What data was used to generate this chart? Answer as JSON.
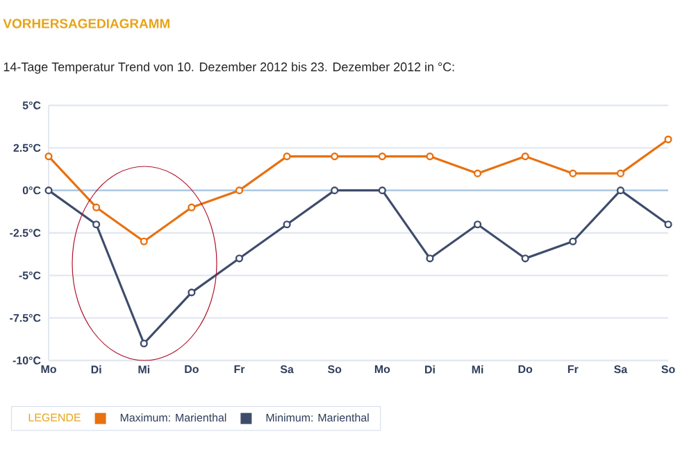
{
  "chart_data": {
    "type": "line",
    "title": "VORHERSAGEDIAGRAMM",
    "subtitle": "14-Tage Temperatur Trend von 10. Dezember 2012 bis 23. Dezember 2012 in °C:",
    "categories": [
      "Mo",
      "Di",
      "Mi",
      "Do",
      "Fr",
      "Sa",
      "So",
      "Mo",
      "Di",
      "Mi",
      "Do",
      "Fr",
      "Sa",
      "So"
    ],
    "series": [
      {
        "name": "Maximum: Marienthal",
        "color": "#e8700f",
        "values": [
          2,
          -1,
          -3,
          -1,
          0,
          2,
          2,
          2,
          2,
          1,
          2,
          1,
          1,
          3
        ]
      },
      {
        "name": "Minimum: Marienthal",
        "color": "#3e4c6c",
        "values": [
          0,
          -2,
          -9,
          -6,
          -4,
          -2,
          0,
          0,
          -4,
          -2,
          -4,
          -3,
          0,
          -2
        ]
      }
    ],
    "ylim": [
      -10,
      5
    ],
    "yticks": [
      {
        "value": -10,
        "label": "-10°C"
      },
      {
        "value": -7.5,
        "label": "-7.5°C"
      },
      {
        "value": -5,
        "label": "-5°C"
      },
      {
        "value": -2.5,
        "label": "-2.5°C"
      },
      {
        "value": 0,
        "label": "0°C"
      },
      {
        "value": 2.5,
        "label": "2.5°C"
      },
      {
        "value": 5,
        "label": "5°C"
      }
    ],
    "grid": "y",
    "ref_lines": [
      {
        "axis": "y",
        "value": 0,
        "color": "#a9c4e0"
      }
    ],
    "legend": "bottom",
    "legend_title": "LEGENDE",
    "marker": "circle",
    "line_style": "solid"
  }
}
